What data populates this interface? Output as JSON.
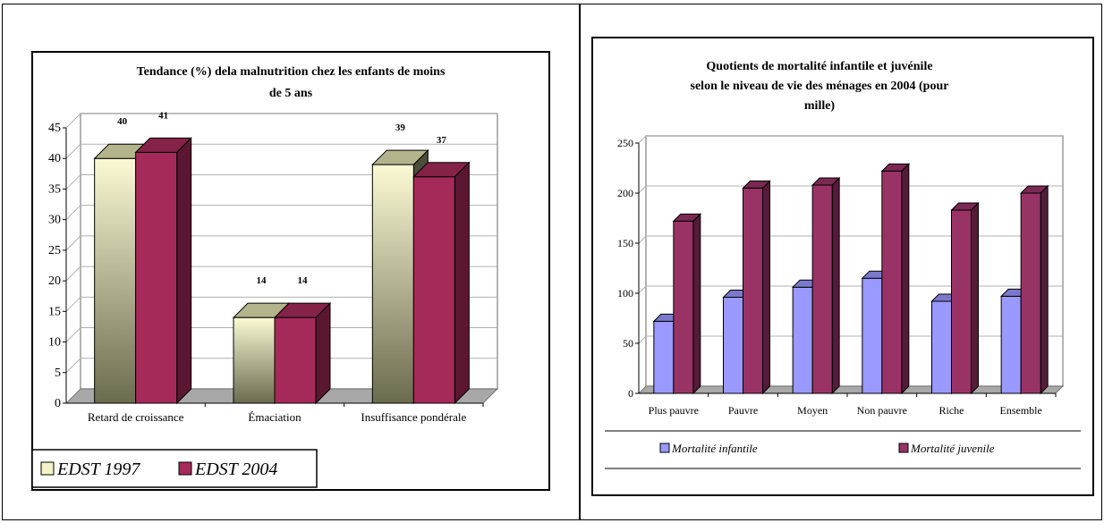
{
  "chart_data": [
    {
      "type": "bar",
      "title_lines": [
        "Tendance (%) dela malnutrition chez les enfants de moins",
        "de 5 ans"
      ],
      "categories": [
        "Retard de croissance",
        "Émaciation",
        "Insuffisance pondérale"
      ],
      "series": [
        {
          "name": "EDST 1997",
          "values": [
            40,
            14,
            39
          ],
          "labels": [
            "40",
            "14",
            "39"
          ],
          "color": "#f4f2c8"
        },
        {
          "name": "EDST 2004",
          "values": [
            41,
            14,
            37
          ],
          "labels": [
            "41",
            "14",
            "37"
          ],
          "color": "#a52a5a"
        }
      ],
      "ylim": [
        0,
        45
      ],
      "yticks": [
        "0",
        "5",
        "10",
        "15",
        "20",
        "25",
        "30",
        "35",
        "40",
        "45"
      ],
      "grid": true,
      "legend": "bottom"
    },
    {
      "type": "bar",
      "title_lines": [
        "Quotients de mortalité infantile et juvénile",
        "selon le niveau de vie des ménages en 2004 (pour",
        "mille)"
      ],
      "categories": [
        "Plus pauvre",
        "Pauvre",
        "Moyen",
        "Non pauvre",
        "Riche",
        "Ensemble"
      ],
      "series": [
        {
          "name": "Mortalité infantile",
          "values": [
            72,
            96,
            106,
            115,
            92,
            97
          ],
          "color": "#9999ff"
        },
        {
          "name": "Mortalité juvenile",
          "values": [
            172,
            205,
            208,
            222,
            183,
            200
          ],
          "color": "#993366"
        }
      ],
      "ylim": [
        0,
        250
      ],
      "yticks": [
        "0",
        "50",
        "100",
        "150",
        "200",
        "250"
      ],
      "grid": true,
      "legend": "bottom"
    }
  ]
}
